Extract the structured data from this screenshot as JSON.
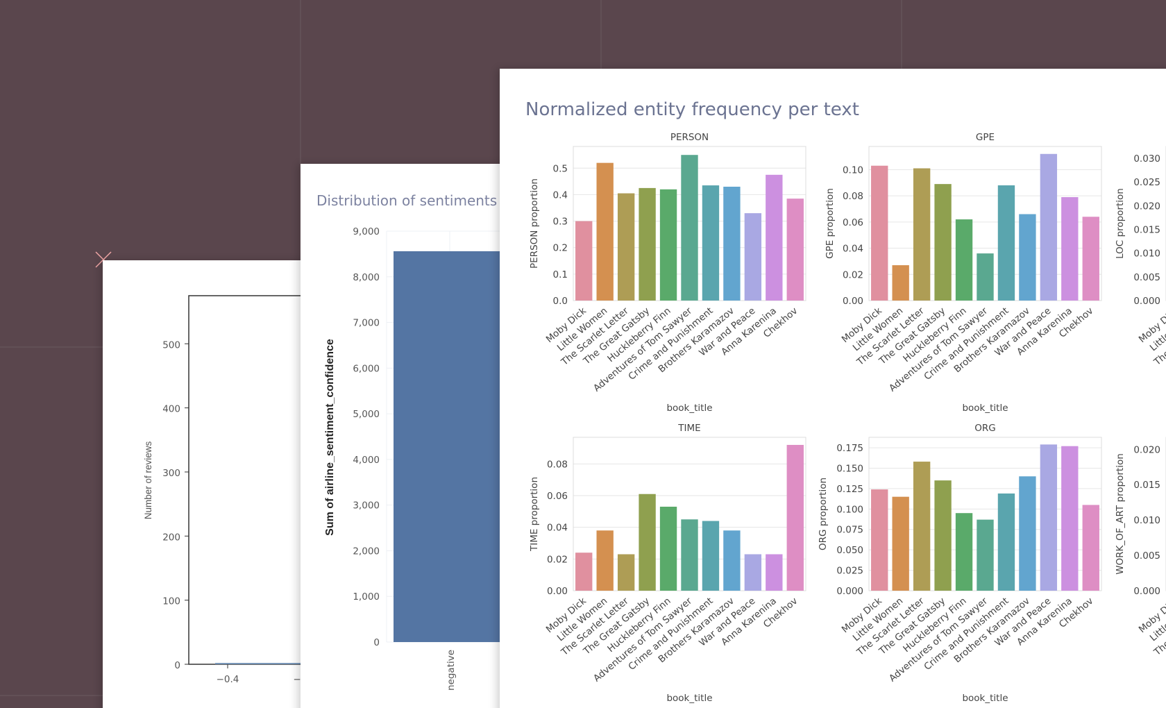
{
  "background": {
    "color": "#5a464d"
  },
  "panels": {
    "histogram": {
      "ylabel": "Number of reviews",
      "yticks": [
        "0",
        "100",
        "200",
        "300",
        "400",
        "500"
      ],
      "xticks": [
        "−0.4",
        "−"
      ]
    },
    "sentiments": {
      "title": "Distribution of sentiments",
      "ylabel": "Sum of airline_sentiment_confidence",
      "bar_color": "#5475a3"
    },
    "entities": {
      "title": "Normalized entity frequency per text"
    }
  },
  "chart_data": [
    {
      "type": "histogram",
      "ylabel": "Number of reviews",
      "ylim": [
        0,
        575
      ],
      "yticks": [
        0,
        100,
        200,
        300,
        400,
        500
      ],
      "xticks": [
        "−0.4"
      ]
    },
    {
      "type": "bar",
      "title": "Distribution of sentiments",
      "ylabel": "Sum of airline_sentiment_confidence",
      "categories": [
        "negative"
      ],
      "values": [
        8560
      ],
      "ylim": [
        0,
        9000
      ],
      "yticks": [
        "0",
        "1,000",
        "2,000",
        "3,000",
        "4,000",
        "5,000",
        "6,000",
        "7,000",
        "8,000",
        "9,000"
      ]
    },
    {
      "type": "bar",
      "title": "Normalized entity frequency per text",
      "xlabel": "book_title",
      "categories": [
        "Moby Dick",
        "Little Women",
        "The Scarlet Letter",
        "The Great Gatsby",
        "Huckleberry Finn",
        "Adventures of Tom Sawyer",
        "Crime and Punishment",
        "Brothers Karamazov",
        "War and Peace",
        "Anna Karenina",
        "Chekhov"
      ],
      "colors": [
        "#e0909f",
        "#d49050",
        "#ae9d55",
        "#8fa04f",
        "#5aaa6a",
        "#5aa890",
        "#5aa5ae",
        "#62a5cf",
        "#a9a8e3",
        "#cc90e0",
        "#de8ec4"
      ],
      "grid": true,
      "subplots": [
        {
          "title": "PERSON",
          "ylabel": "PERSON proportion",
          "ylim": [
            0,
            0.582
          ],
          "yticks": [
            "0.0",
            "0.1",
            "0.2",
            "0.3",
            "0.4",
            "0.5"
          ],
          "ytick_values": [
            0,
            0.1,
            0.2,
            0.3,
            0.4,
            0.5
          ],
          "values": [
            0.3,
            0.52,
            0.405,
            0.425,
            0.42,
            0.55,
            0.435,
            0.43,
            0.33,
            0.475,
            0.385
          ]
        },
        {
          "title": "GPE",
          "ylabel": "GPE proportion",
          "ylim": [
            0,
            0.1177
          ],
          "yticks": [
            "0.00",
            "0.02",
            "0.04",
            "0.06",
            "0.08",
            "0.10"
          ],
          "ytick_values": [
            0,
            0.02,
            0.04,
            0.06,
            0.08,
            0.1
          ],
          "values": [
            0.103,
            0.027,
            0.101,
            0.089,
            0.062,
            0.036,
            0.088,
            0.066,
            0.112,
            0.079,
            0.064
          ]
        },
        {
          "title": "",
          "ylabel": "LOC proportion",
          "ylim": [
            0,
            0.0325
          ],
          "yticks": [
            "0.000",
            "0.005",
            "0.010",
            "0.015",
            "0.020",
            "0.025",
            "0.030"
          ],
          "ytick_values": [
            0,
            0.005,
            0.01,
            0.015,
            0.02,
            0.025,
            0.03
          ],
          "values": []
        },
        {
          "title": "TIME",
          "ylabel": "TIME proportion",
          "ylim": [
            0,
            0.0968
          ],
          "yticks": [
            "0.00",
            "0.02",
            "0.04",
            "0.06",
            "0.08"
          ],
          "ytick_values": [
            0,
            0.02,
            0.04,
            0.06,
            0.08
          ],
          "values": [
            0.024,
            0.038,
            0.023,
            0.061,
            0.053,
            0.045,
            0.044,
            0.038,
            0.023,
            0.023,
            0.092
          ]
        },
        {
          "title": "ORG",
          "ylabel": "ORG proportion",
          "ylim": [
            0,
            0.1878
          ],
          "yticks": [
            "0.000",
            "0.025",
            "0.050",
            "0.075",
            "0.100",
            "0.125",
            "0.150",
            "0.175"
          ],
          "ytick_values": [
            0,
            0.025,
            0.05,
            0.075,
            0.1,
            0.125,
            0.15,
            0.175
          ],
          "values": [
            0.124,
            0.115,
            0.158,
            0.135,
            0.095,
            0.087,
            0.119,
            0.14,
            0.179,
            0.177,
            0.105
          ]
        },
        {
          "title": "",
          "ylabel": "WORK_OF_ART proportion",
          "ylim": [
            0,
            0.0217
          ],
          "yticks": [
            "0.000",
            "0.005",
            "0.010",
            "0.015",
            "0.020"
          ],
          "ytick_values": [
            0,
            0.005,
            0.01,
            0.015,
            0.02
          ],
          "values": []
        }
      ]
    }
  ]
}
